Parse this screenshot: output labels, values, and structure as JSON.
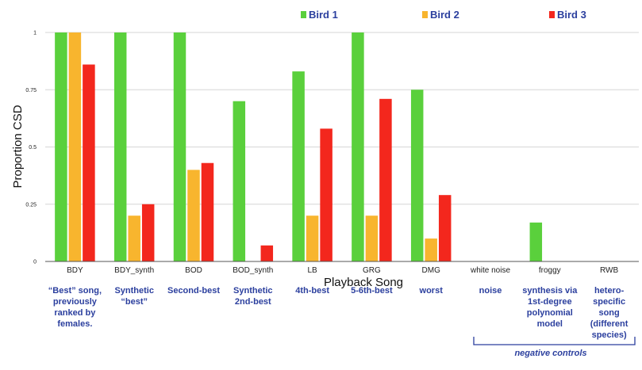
{
  "chart_data": {
    "type": "bar",
    "title": "",
    "xlabel": "Playback Song",
    "ylabel": "Proportion CSD",
    "ylim": [
      0,
      1
    ],
    "yticks": [
      "0",
      "0.25",
      "0.5",
      "0.75",
      "1"
    ],
    "grid": true,
    "legend_position": "top",
    "categories": [
      "BDY",
      "BDY_synth",
      "BOD",
      "BOD_synth",
      "LB",
      "GRG",
      "DMG",
      "white noise",
      "froggy",
      "RWB"
    ],
    "descriptions": [
      [
        "“Best” song,",
        "previously",
        "ranked by",
        "females."
      ],
      [
        "Synthetic",
        "“best”"
      ],
      [
        "Second-best"
      ],
      [
        "Synthetic",
        "2nd-best"
      ],
      [
        "4th-best"
      ],
      [
        "5-6th-best"
      ],
      [
        "worst"
      ],
      [
        "noise"
      ],
      [
        "synthesis via",
        "1st-degree",
        "polynomial",
        "model"
      ],
      [
        "hetero-",
        "specific",
        "song",
        "(different",
        "species)"
      ]
    ],
    "bracket_label": "negative controls",
    "series": [
      {
        "name": "Bird 1",
        "color": "#5ad03c",
        "values": [
          1,
          1,
          1,
          0.7,
          0.83,
          1,
          0.75,
          0,
          0.17,
          0
        ]
      },
      {
        "name": "Bird 2",
        "color": "#f8b52e",
        "values": [
          1,
          0.2,
          0.4,
          0,
          0.2,
          0.2,
          0.1,
          0,
          0,
          0
        ]
      },
      {
        "name": "Bird 3",
        "color": "#f3271d",
        "values": [
          0.86,
          0.25,
          0.43,
          0.07,
          0.58,
          0.71,
          0.29,
          0,
          0,
          0
        ]
      }
    ]
  }
}
